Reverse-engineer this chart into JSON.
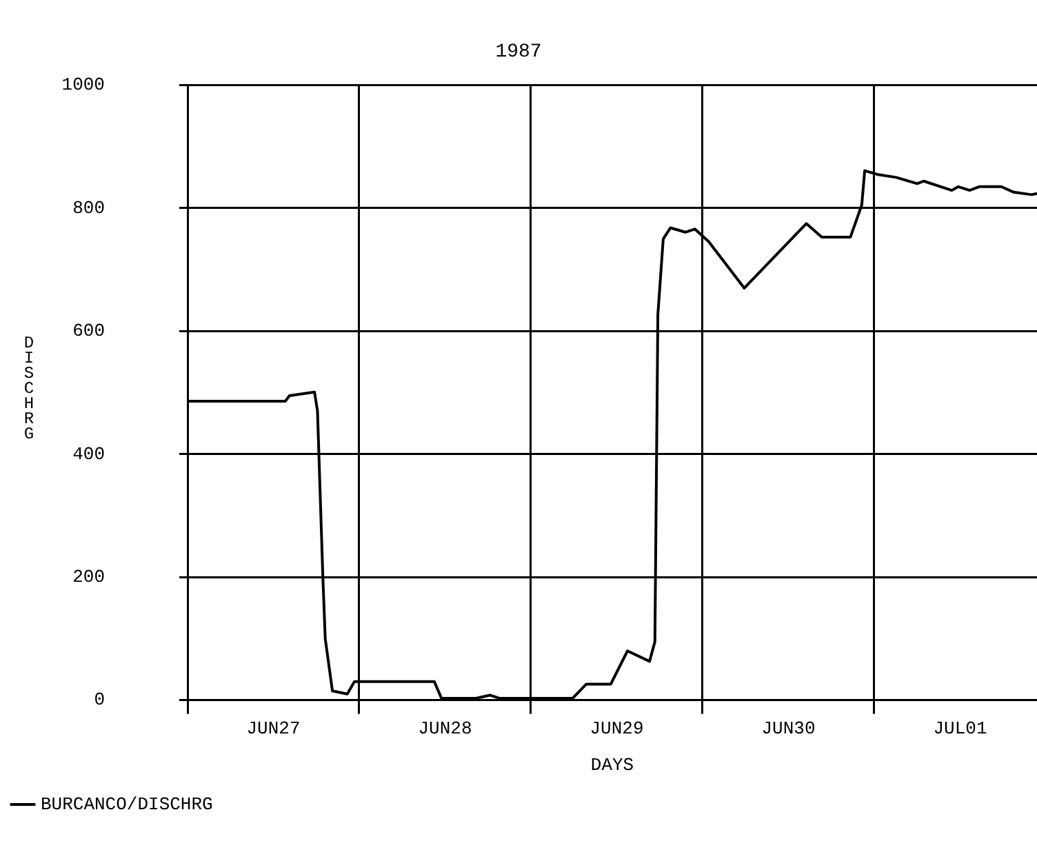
{
  "chart_data": {
    "type": "line",
    "title": "1987",
    "xlabel": "DAYS",
    "ylabel": "DISCHRG",
    "x": [
      "1987-06-27T00:00",
      "1987-06-27T13:40",
      "1987-06-27T14:15",
      "1987-06-27T17:45",
      "1987-06-27T18:10",
      "1987-06-27T18:55",
      "1987-06-27T19:15",
      "1987-06-27T20:15",
      "1987-06-27T22:20",
      "1987-06-27T23:20",
      "1987-06-28T04:10",
      "1987-06-28T10:30",
      "1987-06-28T11:30",
      "1987-06-28T16:20",
      "1987-06-28T18:15",
      "1987-06-28T19:35",
      "1987-06-29T05:50",
      "1987-06-29T07:45",
      "1987-06-29T11:10",
      "1987-06-29T13:30",
      "1987-06-29T16:35",
      "1987-06-29T17:20",
      "1987-06-29T17:45",
      "1987-06-29T18:30",
      "1987-06-29T19:30",
      "1987-06-29T21:35",
      "1987-06-29T22:55",
      "1987-06-30T00:50",
      "1987-06-30T05:50",
      "1987-06-30T14:30",
      "1987-06-30T16:40",
      "1987-06-30T20:40",
      "1987-06-30T22:15",
      "1987-06-30T22:40",
      "1987-07-01T00:25",
      "1987-07-01T03:05",
      "1987-07-01T06:00",
      "1987-07-01T06:55",
      "1987-07-01T10:50",
      "1987-07-01T11:45",
      "1987-07-01T13:20",
      "1987-07-01T14:40",
      "1987-07-01T17:45",
      "1987-07-01T19:30",
      "1987-07-01T22:00",
      "1987-07-01T22:45"
    ],
    "series": [
      {
        "name": "BURCANCO/DISCHRG",
        "color": "#000000",
        "values": [
          486,
          486,
          495,
          501,
          470,
          200,
          100,
          15,
          10,
          30,
          30,
          30,
          3,
          3,
          8,
          3,
          3,
          26,
          26,
          80,
          63,
          95,
          627,
          750,
          768,
          761,
          766,
          746,
          670,
          775,
          753,
          753,
          805,
          861,
          855,
          850,
          840,
          844,
          829,
          835,
          829,
          835,
          835,
          826,
          822,
          824
        ]
      }
    ],
    "xlim": [
      "1987-06-27T00:00",
      "1987-07-01T22:45"
    ],
    "xticks": [
      {
        "value": "1987-06-27T00:00",
        "label": null
      },
      {
        "value": "1987-06-27T12:00",
        "label": "JUN27"
      },
      {
        "value": "1987-06-28T00:00",
        "label": null
      },
      {
        "value": "1987-06-28T12:00",
        "label": "JUN28"
      },
      {
        "value": "1987-06-29T00:00",
        "label": null
      },
      {
        "value": "1987-06-29T12:00",
        "label": "JUN29"
      },
      {
        "value": "1987-06-30T00:00",
        "label": null
      },
      {
        "value": "1987-06-30T12:00",
        "label": "JUN30"
      },
      {
        "value": "1987-07-01T00:00",
        "label": null
      },
      {
        "value": "1987-07-01T12:00",
        "label": "JUL01"
      }
    ],
    "ylim": [
      0,
      1000
    ],
    "yticks": [
      0,
      200,
      400,
      600,
      800,
      1000
    ],
    "grid": true,
    "legend": "bottom left",
    "marker": "none",
    "line_style": "solid"
  }
}
